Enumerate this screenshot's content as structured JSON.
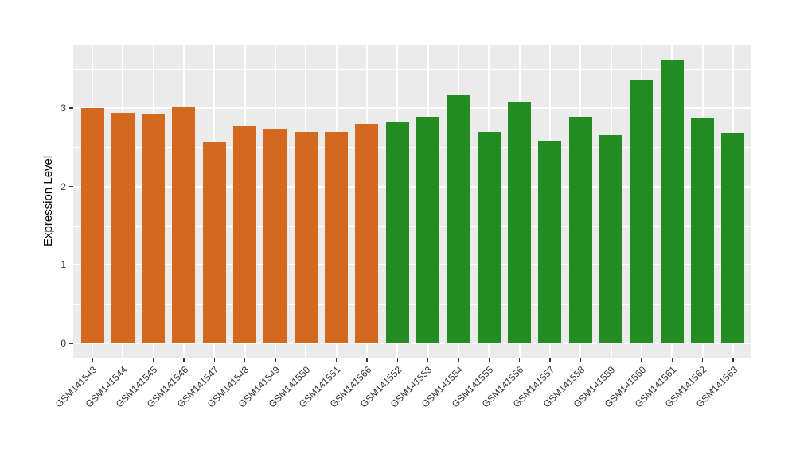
{
  "figure": {
    "background": "#FFFFFF",
    "panel_background": "#EBEBEB",
    "grid_color": "#FFFFFF",
    "axis_text_color": "#333333",
    "axis_title_color": "#000000",
    "tick_color": "#333333"
  },
  "chart_data": {
    "type": "bar",
    "title": "",
    "xlabel": "",
    "ylabel": "Expression Level",
    "ylim": [
      0,
      3.81
    ],
    "yticks": [
      0,
      1,
      2,
      3
    ],
    "yticks_minor": [
      0.5,
      1.5,
      2.5,
      3.5
    ],
    "grid": true,
    "legend": false,
    "categories": [
      "GSM141543",
      "GSM141544",
      "GSM141545",
      "GSM141546",
      "GSM141547",
      "GSM141548",
      "GSM141549",
      "GSM141550",
      "GSM141551",
      "GSM141566",
      "GSM141552",
      "GSM141553",
      "GSM141554",
      "GSM141555",
      "GSM141556",
      "GSM141557",
      "GSM141558",
      "GSM141559",
      "GSM141560",
      "GSM141561",
      "GSM141562",
      "GSM141563"
    ],
    "values": [
      3.0,
      2.94,
      2.93,
      3.01,
      2.56,
      2.78,
      2.74,
      2.7,
      2.69,
      2.8,
      2.82,
      2.89,
      3.16,
      2.69,
      3.08,
      2.58,
      2.89,
      2.65,
      3.35,
      3.62,
      2.87,
      2.68
    ],
    "bar_groups": [
      0,
      0,
      0,
      0,
      0,
      0,
      0,
      0,
      0,
      0,
      1,
      1,
      1,
      1,
      1,
      1,
      1,
      1,
      1,
      1,
      1,
      1
    ],
    "group_colors": [
      "#D2691E",
      "#228B22"
    ]
  }
}
